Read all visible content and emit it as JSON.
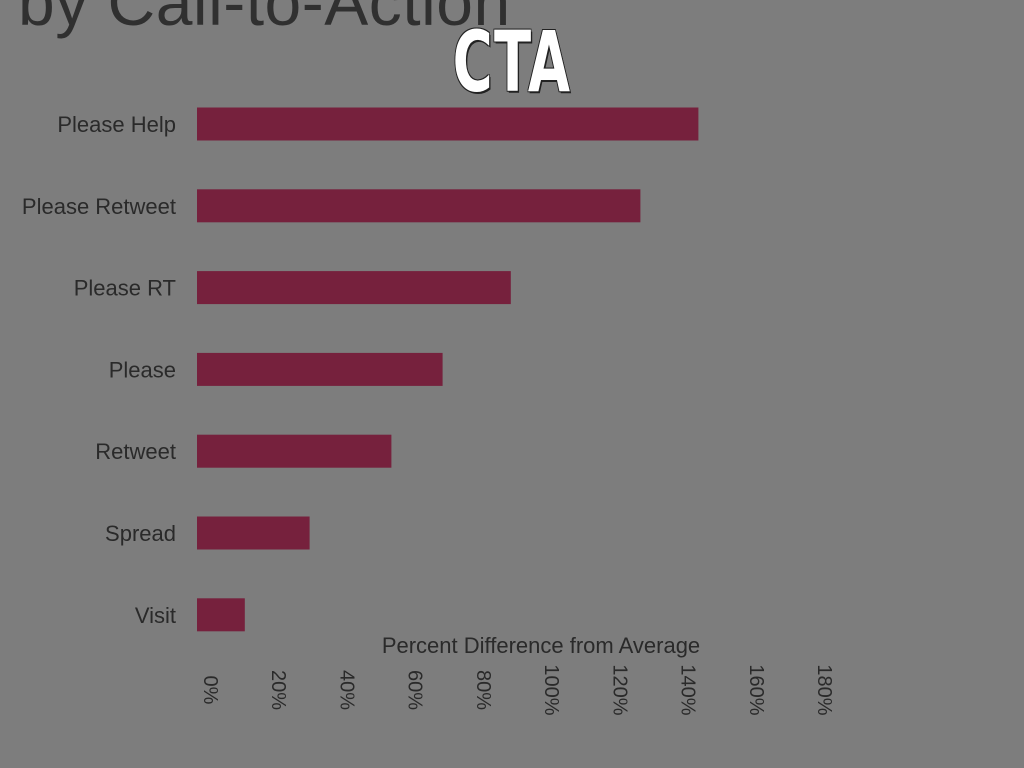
{
  "slide": {
    "background": "#7d7d7d",
    "overlay_title": "CTA"
  },
  "chart_data": {
    "type": "bar",
    "orientation": "horizontal",
    "title": "by Call-to-Action",
    "xlabel": "Percent Difference from Average",
    "ylabel": "",
    "categories": [
      "Please Help",
      "Please Retweet",
      "Please RT",
      "Please",
      "Retweet",
      "Spread",
      "Visit"
    ],
    "values": [
      147,
      130,
      92,
      72,
      57,
      33,
      14
    ],
    "xlim": [
      0,
      180
    ],
    "xticks": [
      "0%",
      "20%",
      "40%",
      "60%",
      "80%",
      "100%",
      "120%",
      "140%",
      "160%",
      "180%"
    ],
    "grid": false,
    "legend": "none",
    "bar_color": "#76213d"
  }
}
